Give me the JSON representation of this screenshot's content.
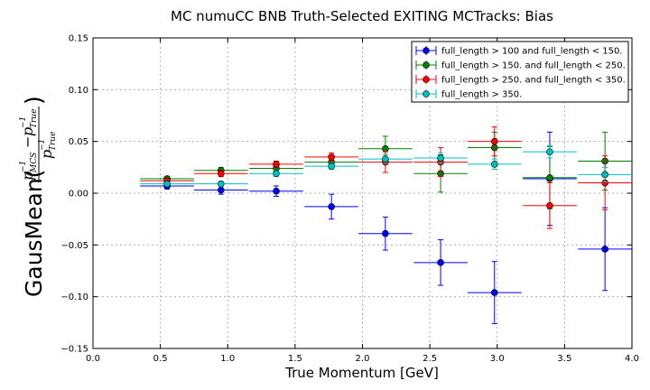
{
  "chart_data": {
    "type": "scatter",
    "title": "MC numuCC BNB Truth-Selected EXITING MCTracks: Bias",
    "xlabel": "True Momentum [GeV]",
    "ylabel": "GausMean(",
    "xlim": [
      0.0,
      4.0
    ],
    "ylim": [
      -0.15,
      0.15
    ],
    "grid": true,
    "legend_position": "top-right",
    "x_ticks": [
      "0.0",
      "0.5",
      "1.0",
      "1.5",
      "2.0",
      "2.5",
      "3.0",
      "3.5",
      "4.0"
    ],
    "y_ticks": [
      "−0.15",
      "−0.10",
      "−0.05",
      "0.00",
      "0.05",
      "0.10",
      "0.15"
    ],
    "x": [
      0.55,
      0.95,
      1.36,
      1.77,
      2.17,
      2.58,
      2.98,
      3.39,
      3.8
    ],
    "x_err": 0.2,
    "series": [
      {
        "name": "full_length > 100 and full_length < 150.",
        "color": "#0000ff",
        "values": [
          0.007,
          0.003,
          0.002,
          -0.013,
          -0.039,
          -0.067,
          -0.096,
          0.014,
          -0.054
        ],
        "y_err": [
          0.003,
          0.004,
          0.005,
          0.012,
          0.016,
          0.022,
          0.03,
          0.045,
          0.04
        ]
      },
      {
        "name": "full_length > 150. and full_length < 250.",
        "color": "#008000",
        "values": [
          0.014,
          0.022,
          0.024,
          0.03,
          0.043,
          0.019,
          0.044,
          0.015,
          0.031
        ],
        "y_err": [
          0.002,
          0.003,
          0.003,
          0.004,
          0.012,
          0.018,
          0.015,
          0.03,
          0.028
        ]
      },
      {
        "name": "full_length > 250. and full_length < 350.",
        "color": "#ff0000",
        "values": [
          0.012,
          0.019,
          0.028,
          0.035,
          0.03,
          0.03,
          0.05,
          -0.012,
          0.01
        ],
        "y_err": [
          0.002,
          0.003,
          0.003,
          0.004,
          0.01,
          0.014,
          0.014,
          0.022,
          0.026
        ]
      },
      {
        "name": "full_length > 350.",
        "color": "#00bfbf",
        "values": [
          0.009,
          0.009,
          0.019,
          0.026,
          0.033,
          0.034,
          0.028,
          0.04,
          0.018
        ],
        "y_err": [
          0.002,
          0.002,
          0.003,
          0.003,
          0.004,
          0.005,
          0.005,
          0.006,
          0.007
        ]
      }
    ]
  }
}
